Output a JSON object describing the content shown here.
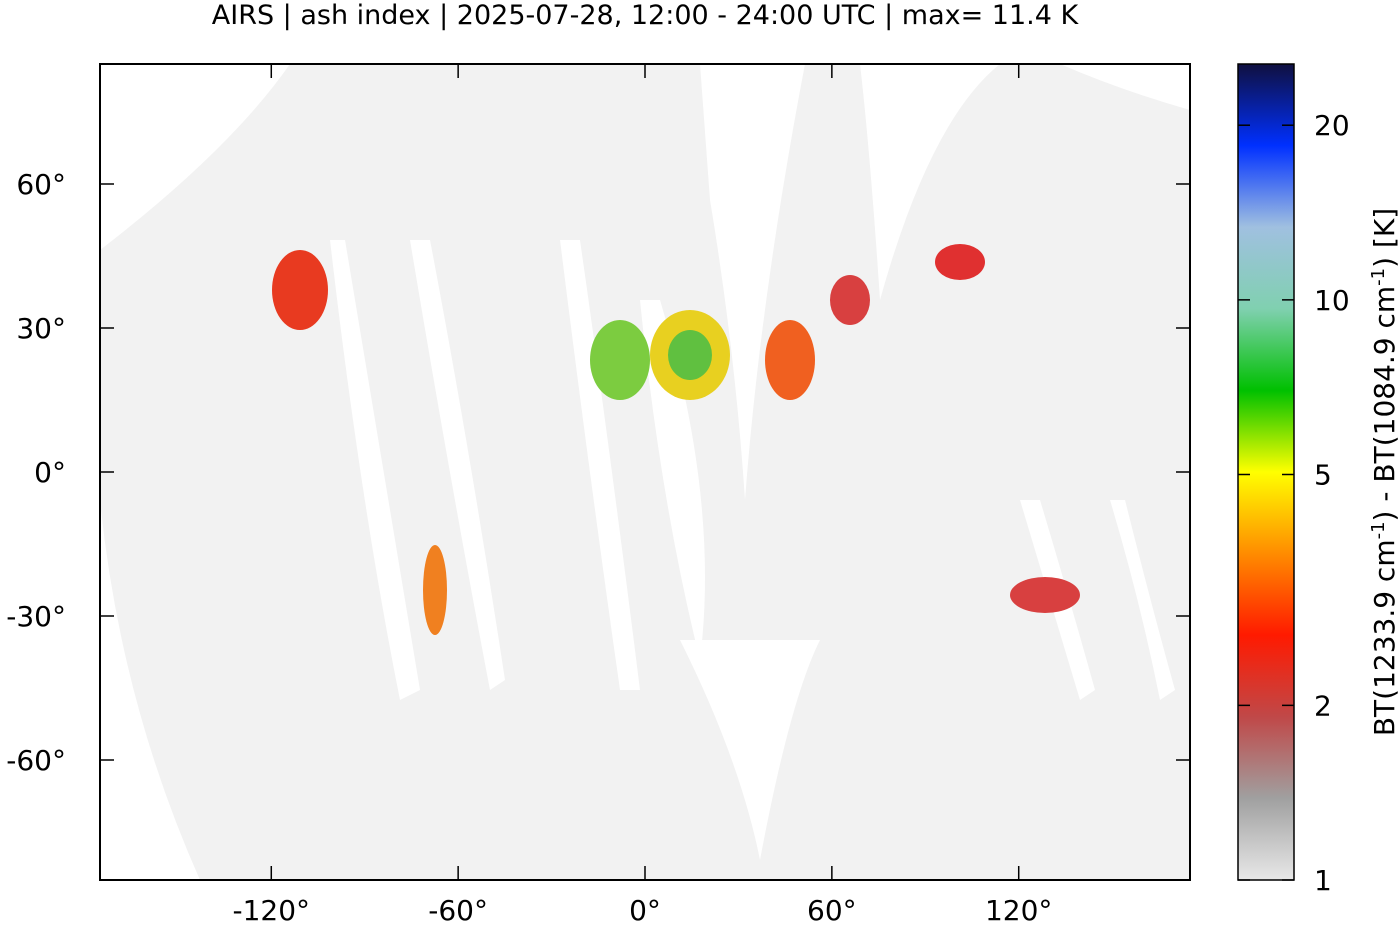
{
  "chart_data": {
    "type": "map",
    "title": "AIRS | ash index | 2025-07-28, 12:00 - 24:00 UTC | max= 11.4 K",
    "xlim": [
      -175,
      175
    ],
    "ylim": [
      -85,
      85
    ],
    "xticks": [
      {
        "value": -120,
        "label": "-120°"
      },
      {
        "value": -60,
        "label": "-60°"
      },
      {
        "value": 0,
        "label": "0°"
      },
      {
        "value": 60,
        "label": "60°"
      },
      {
        "value": 120,
        "label": "120°"
      }
    ],
    "yticks": [
      {
        "value": 60,
        "label": "60°"
      },
      {
        "value": 30,
        "label": "30°"
      },
      {
        "value": 0,
        "label": "0°"
      },
      {
        "value": -30,
        "label": "-30°"
      },
      {
        "value": -60,
        "label": "-60°"
      }
    ],
    "colorbar": {
      "label": [
        "BT(1233.9 cm",
        "-1",
        ") - BT(1084.9 cm",
        "-1",
        ") [K]"
      ],
      "lim": [
        1,
        25.5
      ],
      "ticks": [
        1,
        2,
        5,
        10,
        20
      ],
      "log": true,
      "colors": [
        "#e8e8e8",
        "#a0a0a0",
        "#c04848",
        "#ff1a00",
        "#ff8c00",
        "#ffff00",
        "#00c000",
        "#80d0b0",
        "#a0c0e0",
        "#0030ff",
        "#101040"
      ]
    }
  }
}
